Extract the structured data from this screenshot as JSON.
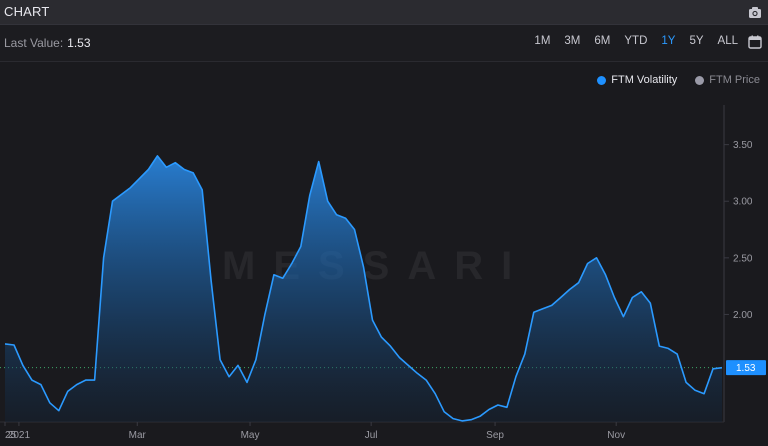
{
  "header": {
    "title": "CHART"
  },
  "toolbar": {
    "last_value_label": "Last Value:",
    "last_value": "1.53",
    "ranges": [
      "1M",
      "3M",
      "6M",
      "YTD",
      "1Y",
      "5Y",
      "ALL"
    ],
    "active_range": "1Y"
  },
  "icons": {
    "camera": "camera-icon",
    "calendar": "calendar-icon"
  },
  "colors": {
    "accent": "#2b9aff",
    "series": "#2b8ff0",
    "inactive": "#9a9aa8"
  },
  "watermark": "MESSARI",
  "legend": [
    {
      "name": "FTM Volatility",
      "color": "#1e90ff",
      "active": true
    },
    {
      "name": "FTM Price",
      "color": "#9a9aa8",
      "active": false
    }
  ],
  "chart_data": {
    "type": "area",
    "ylim": [
      1.05,
      3.85
    ],
    "yticks": [
      "2.00",
      "2.50",
      "3.00",
      "3.50"
    ],
    "ytick_values": [
      2.0,
      2.5,
      3.0,
      3.5
    ],
    "x_ticks": [
      {
        "label": "25",
        "week": 0
      },
      {
        "label": "2021",
        "week": 1
      },
      {
        "label": "Mar",
        "week": 9.5
      },
      {
        "label": "May",
        "week": 17.6
      },
      {
        "label": "Jul",
        "week": 26.3
      },
      {
        "label": "Sep",
        "week": 35.2
      },
      {
        "label": "Nov",
        "week": 43.9
      }
    ],
    "x_range_weeks": [
      0,
      51.5
    ],
    "series": [
      {
        "name": "FTM Volatility",
        "values": [
          1.74,
          1.73,
          1.55,
          1.42,
          1.38,
          1.22,
          1.15,
          1.32,
          1.38,
          1.42,
          1.42,
          2.5,
          3.0,
          3.06,
          3.12,
          3.2,
          3.28,
          3.4,
          3.3,
          3.34,
          3.28,
          3.25,
          3.1,
          2.3,
          1.6,
          1.45,
          1.55,
          1.4,
          1.6,
          2.0,
          2.35,
          2.32,
          2.45,
          2.6,
          3.05,
          3.35,
          3.0,
          2.88,
          2.85,
          2.75,
          2.42,
          1.95,
          1.8,
          1.72,
          1.62,
          1.55,
          1.48,
          1.42,
          1.3,
          1.14,
          1.08,
          1.06,
          1.07,
          1.1,
          1.16,
          1.2,
          1.18,
          1.45,
          1.65,
          2.02,
          2.05,
          2.08,
          2.15,
          2.22,
          2.28,
          2.45,
          2.5,
          2.35,
          2.15,
          1.98,
          2.15,
          2.2,
          2.1,
          1.72,
          1.7,
          1.65,
          1.4,
          1.33,
          1.3,
          1.52,
          1.53
        ]
      }
    ],
    "last_value": 1.53,
    "grid": false,
    "legend_position": "top-right"
  }
}
